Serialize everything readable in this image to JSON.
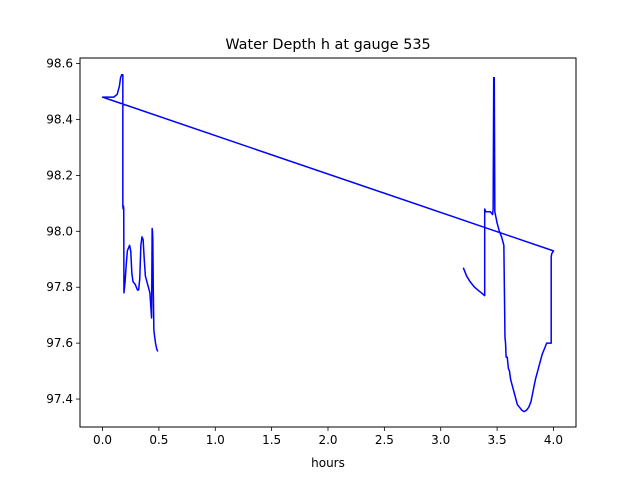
{
  "chart_data": {
    "type": "line",
    "title": "Water Depth h at gauge 535",
    "xlabel": "hours",
    "ylabel": "",
    "xlim": [
      -0.2,
      4.2
    ],
    "ylim": [
      97.3,
      98.62
    ],
    "xticks": [
      0.0,
      0.5,
      1.0,
      1.5,
      2.0,
      2.5,
      3.0,
      3.5,
      4.0
    ],
    "xtick_labels": [
      "0.0",
      "0.5",
      "1.0",
      "1.5",
      "2.0",
      "2.5",
      "3.0",
      "3.5",
      "4.0"
    ],
    "yticks": [
      97.4,
      97.6,
      97.8,
      98.0,
      98.2,
      98.4,
      98.6
    ],
    "ytick_labels": [
      "97.4",
      "97.6",
      "97.8",
      "98.0",
      "98.2",
      "98.4",
      "98.6"
    ],
    "grid": false,
    "series": [
      {
        "color": "#0000ff",
        "x": [
          3.2,
          3.23,
          3.26,
          3.3,
          3.33,
          3.36,
          3.39,
          3.39,
          3.4,
          3.42,
          3.44,
          3.46,
          3.465,
          3.47,
          3.475,
          3.48,
          3.485,
          3.49,
          3.5,
          3.52,
          3.54,
          3.56,
          3.57,
          3.575,
          3.58,
          3.59,
          3.6,
          3.61,
          3.62,
          3.64,
          3.66,
          3.68,
          3.7,
          3.72,
          3.74,
          3.76,
          3.78,
          3.8,
          3.82,
          3.84,
          3.86,
          3.88,
          3.9,
          3.92,
          3.94,
          3.96,
          3.98,
          3.98,
          3.985,
          4.0,
          0.0,
          0.05,
          0.1,
          0.13,
          0.15,
          0.16,
          0.17,
          0.18,
          0.18,
          0.183,
          0.186,
          0.188,
          0.19,
          0.19,
          0.2,
          0.21,
          0.22,
          0.23,
          0.24,
          0.25,
          0.26,
          0.27,
          0.29,
          0.31,
          0.32,
          0.33,
          0.34,
          0.35,
          0.36,
          0.37,
          0.38,
          0.4,
          0.42,
          0.43,
          0.435,
          0.44,
          0.443,
          0.446,
          0.45,
          0.455,
          0.46,
          0.47,
          0.48,
          0.49
        ],
        "y": [
          97.87,
          97.84,
          97.82,
          97.8,
          97.79,
          97.78,
          97.77,
          98.08,
          98.07,
          98.07,
          98.07,
          98.06,
          98.08,
          98.55,
          98.55,
          98.07,
          98.06,
          98.05,
          98.03,
          98.0,
          97.98,
          97.95,
          97.62,
          97.6,
          97.55,
          97.55,
          97.51,
          97.5,
          97.47,
          97.44,
          97.41,
          97.38,
          97.37,
          97.36,
          97.355,
          97.36,
          97.37,
          97.39,
          97.43,
          97.47,
          97.5,
          97.53,
          97.56,
          97.58,
          97.6,
          97.6,
          97.6,
          97.91,
          97.92,
          97.93,
          98.48,
          98.48,
          98.48,
          98.49,
          98.52,
          98.55,
          98.56,
          98.56,
          98.09,
          98.08,
          98.09,
          98.08,
          97.78,
          97.78,
          97.82,
          97.88,
          97.93,
          97.94,
          97.95,
          97.93,
          97.85,
          97.82,
          97.81,
          97.79,
          97.79,
          97.83,
          97.95,
          97.98,
          97.97,
          97.9,
          97.84,
          97.81,
          97.78,
          97.72,
          97.69,
          98.01,
          98.0,
          97.97,
          97.8,
          97.65,
          97.63,
          97.6,
          97.58,
          97.57
        ]
      }
    ]
  }
}
